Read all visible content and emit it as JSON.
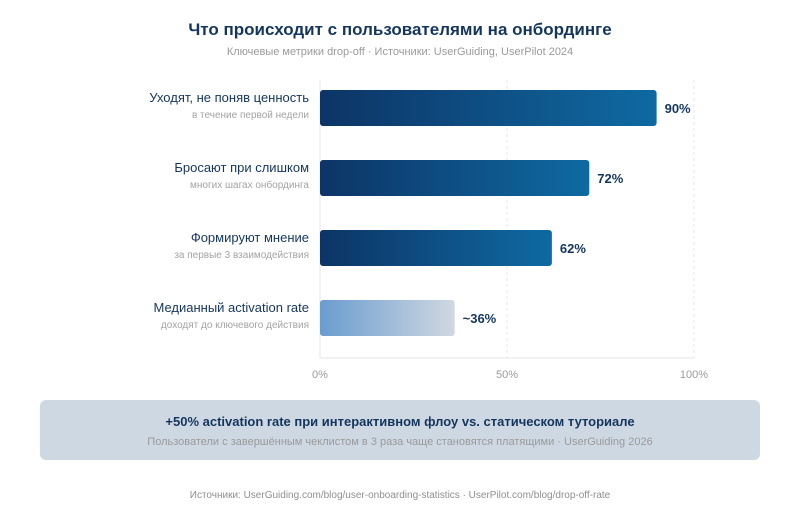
{
  "header": {
    "title": "Что происходит с пользователями на онбординге",
    "subtitle": "Ключевые метрики drop-off · Источники: UserGuiding, UserPilot 2024"
  },
  "chart_data": {
    "type": "bar",
    "orientation": "horizontal",
    "xlim": [
      0,
      100
    ],
    "grid": true,
    "categories": [
      {
        "label": "Уходят, не поняв ценность",
        "sub": "в течение первой недели",
        "value": 90,
        "value_label": "90%",
        "highlight": false
      },
      {
        "label": "Бросают при слишком",
        "sub": "многих шагах онбординга",
        "value": 72,
        "value_label": "72%",
        "highlight": false
      },
      {
        "label": "Формируют мнение",
        "sub": "за первые 3 взаимодействия",
        "value": 62,
        "value_label": "62%",
        "highlight": false
      },
      {
        "label": "Медианный activation rate",
        "sub": "доходят до ключевого действия",
        "value": 36,
        "value_label": "~36%",
        "highlight": true
      }
    ],
    "ticks": [
      {
        "value": 0,
        "label": "0%"
      },
      {
        "value": 50,
        "label": "50%"
      },
      {
        "value": 100,
        "label": "100%"
      }
    ]
  },
  "callout": {
    "title": "+50% activation rate при интерактивном флоу vs. статическом туториале",
    "subtitle": "Пользователи с завершённым чеклистом в 3 раза чаще становятся платящими · UserGuiding 2026"
  },
  "footer": {
    "sources": "Источники: UserGuiding.com/blog/user-onboarding-statistics · UserPilot.com/blog/drop-off-rate"
  },
  "colors": {
    "bar_dark": "#0d3466",
    "bar_light": "#0e6aa2",
    "highlight_dark": "#6a9ccf",
    "highlight_light": "#d0d8e1",
    "highlight_label": "#1a6fa0",
    "text_primary": "#14365e",
    "text_muted": "#9a9a9a"
  }
}
